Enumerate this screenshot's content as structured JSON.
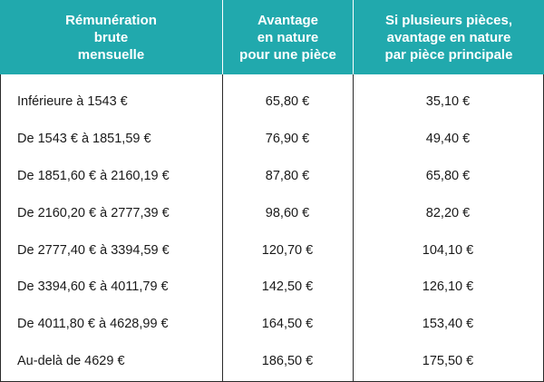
{
  "table": {
    "headers": [
      "Rémunération\nbrute\nmensuelle",
      "Avantage\nen nature\npour une pièce",
      "Si plusieurs pièces,\navantage en nature\npar pièce principale"
    ],
    "rows": [
      [
        "Inférieure à 1543 €",
        "65,80 €",
        "35,10 €"
      ],
      [
        "De 1543 € à 1851,59 €",
        "76,90 €",
        "49,40 €"
      ],
      [
        "De 1851,60 € à 2160,19 €",
        "87,80 €",
        "65,80 €"
      ],
      [
        "De 2160,20 € à 2777,39 €",
        "98,60 €",
        "82,20 €"
      ],
      [
        "De 2777,40 € à 3394,59 €",
        "120,70 €",
        "104,10 €"
      ],
      [
        "De 3394,60 € à 4011,79 €",
        "142,50 €",
        "126,10 €"
      ],
      [
        "De 4011,80 € à 4628,99 €",
        "164,50 €",
        "153,40 €"
      ],
      [
        "Au-delà de 4629 €",
        "186,50 €",
        "175,50 €"
      ]
    ]
  },
  "colors": {
    "header_bg": "#21a9ad",
    "header_text": "#ffffff",
    "border": "#2a2a2a"
  }
}
